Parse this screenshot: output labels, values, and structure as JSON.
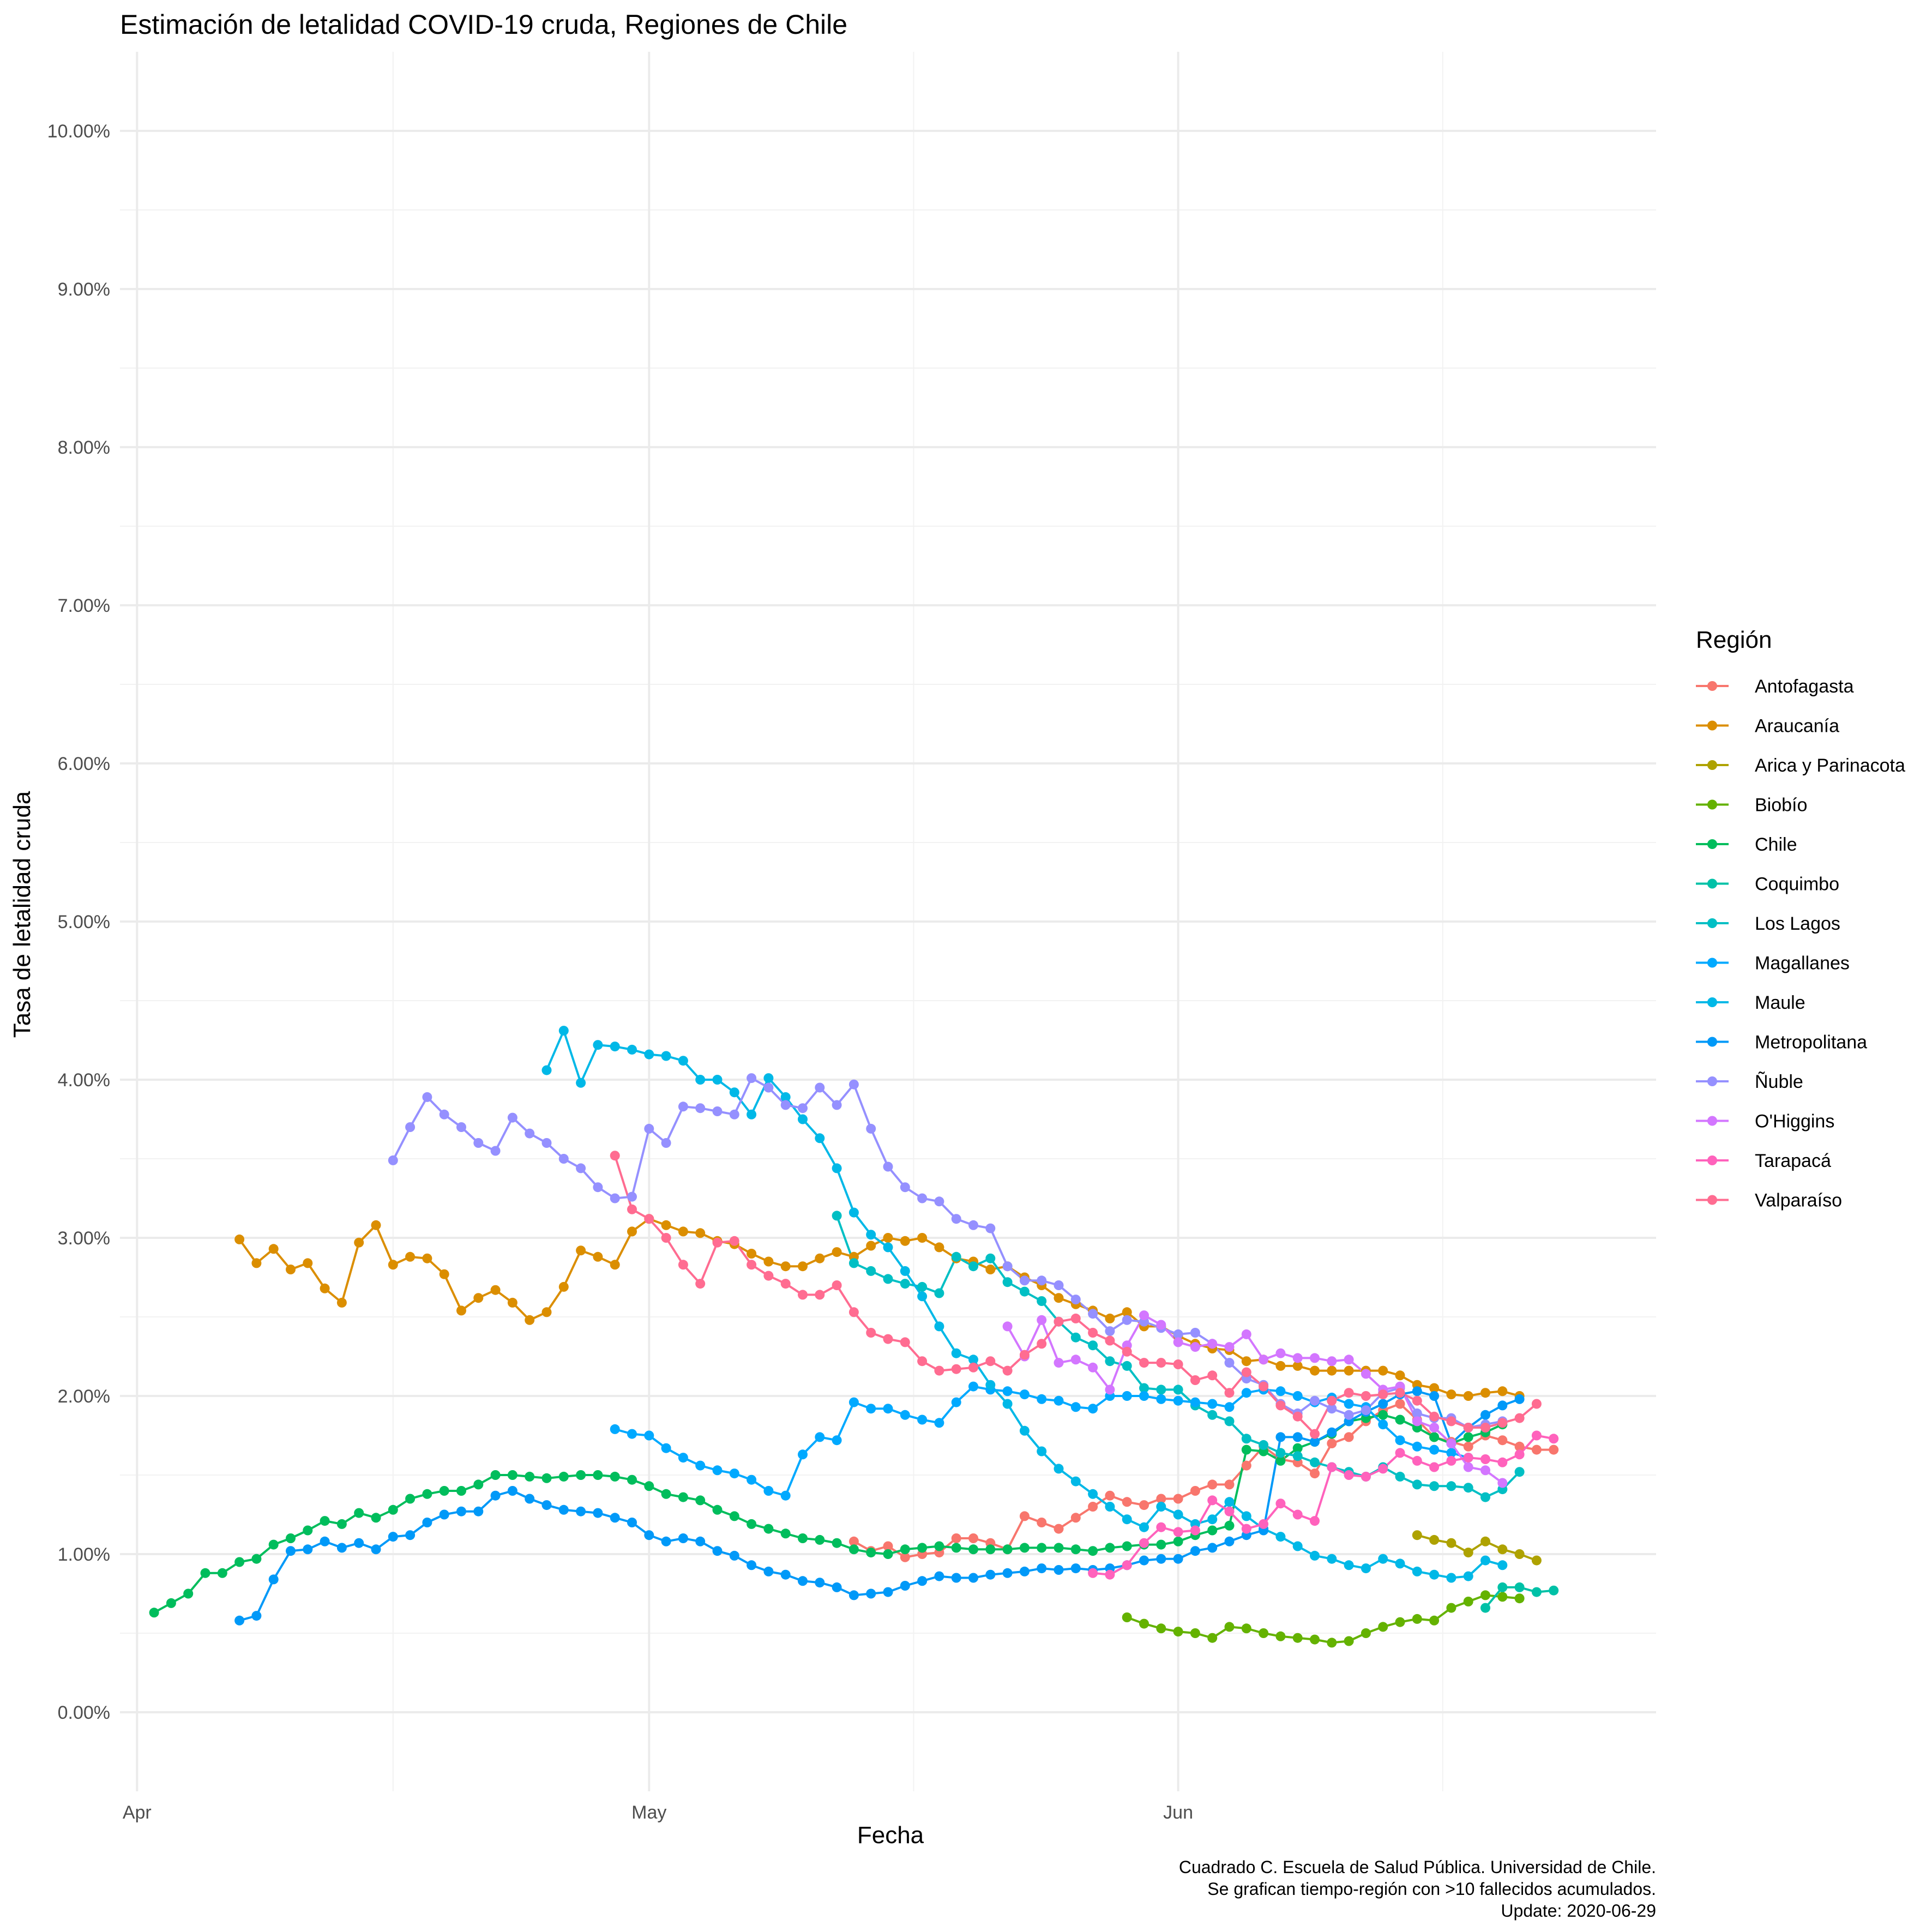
{
  "chart_data": {
    "type": "line",
    "title": "Estimación de letalidad COVID-19 cruda, Regiones de Chile",
    "xlabel": "Fecha",
    "ylabel": "Tasa de letalidad cruda",
    "x_type": "date",
    "xlim": [
      "2020-03-31",
      "2020-06-29"
    ],
    "ylim": [
      -0.5,
      10.5
    ],
    "y_ticks": [
      0,
      1,
      2,
      3,
      4,
      5,
      6,
      7,
      8,
      9,
      10
    ],
    "y_tick_labels": [
      "0.00%",
      "1.00%",
      "2.00%",
      "3.00%",
      "4.00%",
      "5.00%",
      "6.00%",
      "7.00%",
      "8.00%",
      "9.00%",
      "10.00%"
    ],
    "x_ticks": [
      "2020-04-01",
      "2020-05-01",
      "2020-06-01"
    ],
    "x_tick_labels": [
      "Apr",
      "May",
      "Jun"
    ],
    "grid": true,
    "legend": {
      "title": "Región",
      "position": "right"
    },
    "caption": [
      "Cuadrado C. Escuela de Salud Pública. Universidad de Chile.",
      "Se grafican tiempo-región con >10 fallecidos acumulados.",
      "Update: 2020-06-29"
    ],
    "series": [
      {
        "name": "Antofagasta",
        "color": "#F8766D",
        "start": "2020-05-13",
        "values": [
          1.08,
          1.02,
          1.05,
          0.98,
          1.0,
          1.01,
          1.1,
          1.1,
          1.07,
          1.03,
          1.24,
          1.2,
          1.16,
          1.23,
          1.3,
          1.37,
          1.33,
          1.31,
          1.35,
          1.35,
          1.4,
          1.44,
          1.44,
          1.56,
          1.68,
          1.6,
          1.58,
          1.51,
          1.7,
          1.74,
          1.84,
          1.91,
          1.95,
          1.85,
          1.74,
          1.71,
          1.68,
          1.75,
          1.72,
          1.68,
          1.66,
          1.66
        ]
      },
      {
        "name": "Araucanía",
        "color": "#DB8E00",
        "start": "2020-04-07",
        "values": [
          2.99,
          2.84,
          2.93,
          2.8,
          2.84,
          2.68,
          2.59,
          2.97,
          3.08,
          2.83,
          2.88,
          2.87,
          2.77,
          2.54,
          2.62,
          2.67,
          2.59,
          2.48,
          2.53,
          2.69,
          2.92,
          2.88,
          2.83,
          3.04,
          3.12,
          3.08,
          3.04,
          3.03,
          2.98,
          2.96,
          2.9,
          2.85,
          2.82,
          2.82,
          2.87,
          2.91,
          2.88,
          2.95,
          3.0,
          2.98,
          3.0,
          2.94,
          2.87,
          2.85,
          2.8,
          2.82,
          2.75,
          2.7,
          2.62,
          2.58,
          2.54,
          2.49,
          2.53,
          2.44,
          2.44,
          2.38,
          2.33,
          2.3,
          2.29,
          2.22,
          2.23,
          2.19,
          2.19,
          2.16,
          2.16,
          2.16,
          2.16,
          2.16,
          2.13,
          2.07,
          2.05,
          2.01,
          2.0,
          2.02,
          2.03,
          2.0
        ]
      },
      {
        "name": "Arica y Parinacota",
        "color": "#AEA200",
        "start": "2020-06-15",
        "values": [
          1.12,
          1.09,
          1.07,
          1.01,
          1.08,
          1.03,
          1.0,
          0.96
        ]
      },
      {
        "name": "Biobío",
        "color": "#64B200",
        "start": "2020-05-29",
        "values": [
          0.6,
          0.56,
          0.53,
          0.51,
          0.5,
          0.47,
          0.54,
          0.53,
          0.5,
          0.48,
          0.47,
          0.46,
          0.44,
          0.45,
          0.5,
          0.54,
          0.57,
          0.59,
          0.58,
          0.66,
          0.7,
          0.74,
          0.73,
          0.72
        ]
      },
      {
        "name": "Chile",
        "color": "#00BD5C",
        "start": "2020-04-02",
        "values": [
          0.63,
          0.69,
          0.75,
          0.88,
          0.88,
          0.95,
          0.97,
          1.06,
          1.1,
          1.15,
          1.21,
          1.19,
          1.26,
          1.23,
          1.28,
          1.35,
          1.38,
          1.4,
          1.4,
          1.44,
          1.5,
          1.5,
          1.49,
          1.48,
          1.49,
          1.5,
          1.5,
          1.49,
          1.47,
          1.43,
          1.38,
          1.36,
          1.34,
          1.28,
          1.24,
          1.19,
          1.16,
          1.13,
          1.1,
          1.09,
          1.07,
          1.03,
          1.01,
          1.0,
          1.03,
          1.04,
          1.05,
          1.04,
          1.03,
          1.03,
          1.03,
          1.04,
          1.04,
          1.04,
          1.03,
          1.02,
          1.04,
          1.05,
          1.06,
          1.06,
          1.08,
          1.12,
          1.15,
          1.18,
          1.66,
          1.65,
          1.59,
          1.67,
          1.71,
          1.76,
          1.84,
          1.86,
          1.88,
          1.85,
          1.8,
          1.74,
          1.7,
          1.74,
          1.77,
          1.82
        ]
      },
      {
        "name": "Coquimbo",
        "color": "#00C1A7",
        "start": "2020-06-19",
        "values": [
          0.66,
          0.79,
          0.79,
          0.76,
          0.77
        ]
      },
      {
        "name": "Los Lagos",
        "color": "#00BFC4",
        "start": "2020-05-12",
        "values": [
          3.14,
          2.84,
          2.79,
          2.74,
          2.71,
          2.69,
          2.65,
          2.88,
          2.82,
          2.87,
          2.72,
          2.66,
          2.6,
          2.47,
          2.37,
          2.32,
          2.22,
          2.19,
          2.05,
          2.04,
          2.04,
          1.94,
          1.88,
          1.84,
          1.73,
          1.69,
          1.64,
          1.62,
          1.58,
          1.55,
          1.52,
          1.49,
          1.55,
          1.49,
          1.44,
          1.43,
          1.43,
          1.42,
          1.36,
          1.41,
          1.52
        ]
      },
      {
        "name": "Magallanes",
        "color": "#00A9FF",
        "start": "2020-04-29",
        "values": [
          1.79,
          1.76,
          1.75,
          1.67,
          1.61,
          1.56,
          1.53,
          1.51,
          1.47,
          1.4,
          1.37,
          1.63,
          1.74,
          1.72,
          1.96,
          1.92,
          1.92,
          1.88,
          1.85,
          1.83,
          1.96,
          2.06,
          2.04,
          2.03,
          2.01,
          1.98,
          1.97,
          1.93,
          1.92,
          2.0,
          2.0,
          2.0,
          1.98,
          1.97,
          1.96,
          1.95,
          1.93,
          2.02,
          2.04,
          2.03,
          2.0,
          1.96,
          1.99,
          1.95,
          1.93,
          1.82,
          1.72,
          1.68,
          1.66,
          1.64,
          1.61
        ]
      },
      {
        "name": "Maule",
        "color": "#00B8E7",
        "start": "2020-04-25",
        "values": [
          4.06,
          4.31,
          3.98,
          4.22,
          4.21,
          4.19,
          4.16,
          4.15,
          4.12,
          4.0,
          4.0,
          3.92,
          3.78,
          4.01,
          3.89,
          3.75,
          3.63,
          3.44,
          3.16,
          3.02,
          2.94,
          2.79,
          2.63,
          2.44,
          2.27,
          2.23,
          2.07,
          1.95,
          1.78,
          1.65,
          1.54,
          1.46,
          1.38,
          1.3,
          1.22,
          1.17,
          1.3,
          1.25,
          1.19,
          1.22,
          1.33,
          1.24,
          1.16,
          1.11,
          1.05,
          0.99,
          0.97,
          0.93,
          0.91,
          0.97,
          0.94,
          0.89,
          0.87,
          0.85,
          0.86,
          0.96,
          0.93
        ]
      },
      {
        "name": "Metropolitana",
        "color": "#0099F8",
        "start": "2020-04-07",
        "values": [
          0.58,
          0.61,
          0.84,
          1.02,
          1.03,
          1.08,
          1.04,
          1.07,
          1.03,
          1.11,
          1.12,
          1.2,
          1.25,
          1.27,
          1.27,
          1.37,
          1.4,
          1.35,
          1.31,
          1.28,
          1.27,
          1.26,
          1.23,
          1.2,
          1.12,
          1.08,
          1.1,
          1.08,
          1.02,
          0.99,
          0.93,
          0.89,
          0.87,
          0.83,
          0.82,
          0.79,
          0.74,
          0.75,
          0.76,
          0.8,
          0.83,
          0.86,
          0.85,
          0.85,
          0.87,
          0.88,
          0.89,
          0.91,
          0.9,
          0.91,
          0.9,
          0.91,
          0.93,
          0.96,
          0.97,
          0.97,
          1.02,
          1.04,
          1.08,
          1.12,
          1.15,
          1.74,
          1.74,
          1.71,
          1.77,
          1.84,
          1.9,
          1.95,
          2.01,
          2.03,
          2.0,
          1.7,
          1.8,
          1.88,
          1.94,
          1.98
        ]
      },
      {
        "name": "Ñuble",
        "color": "#9590FF",
        "start": "2020-04-16",
        "values": [
          3.49,
          3.7,
          3.89,
          3.78,
          3.7,
          3.6,
          3.55,
          3.76,
          3.66,
          3.6,
          3.5,
          3.44,
          3.32,
          3.25,
          3.26,
          3.69,
          3.6,
          3.83,
          3.82,
          3.8,
          3.78,
          4.01,
          3.95,
          3.84,
          3.82,
          3.95,
          3.84,
          3.97,
          3.69,
          3.45,
          3.32,
          3.25,
          3.23,
          3.12,
          3.08,
          3.06,
          2.82,
          2.73,
          2.73,
          2.7,
          2.61,
          2.52,
          2.41,
          2.48,
          2.47,
          2.43,
          2.39,
          2.4,
          2.33,
          2.21,
          2.11,
          2.07,
          1.95,
          1.89,
          1.97,
          1.92,
          1.88,
          1.91,
          2.02,
          2.05,
          1.89,
          1.86,
          1.86,
          1.8,
          1.82,
          1.84
        ]
      },
      {
        "name": "O'Higgins",
        "color": "#D376FF",
        "start": "2020-05-22",
        "values": [
          2.44,
          2.25,
          2.48,
          2.21,
          2.23,
          2.18,
          2.04,
          2.32,
          2.51,
          2.45,
          2.34,
          2.31,
          2.33,
          2.31,
          2.39,
          2.23,
          2.27,
          2.24,
          2.24,
          2.22,
          2.23,
          2.14,
          2.04,
          2.06,
          1.84,
          1.8,
          1.7,
          1.55,
          1.53,
          1.45
        ]
      },
      {
        "name": "Tarapacá",
        "color": "#FF62BC",
        "start": "2020-05-27",
        "values": [
          0.88,
          0.87,
          0.93,
          1.07,
          1.17,
          1.14,
          1.15,
          1.34,
          1.27,
          1.16,
          1.19,
          1.32,
          1.25,
          1.21,
          1.55,
          1.5,
          1.49,
          1.54,
          1.64,
          1.59,
          1.55,
          1.59,
          1.61,
          1.6,
          1.58,
          1.63,
          1.75,
          1.73
        ]
      },
      {
        "name": "Valparaíso",
        "color": "#FF6C91",
        "start": "2020-04-29",
        "values": [
          3.52,
          3.18,
          3.12,
          3.0,
          2.83,
          2.71,
          2.97,
          2.98,
          2.83,
          2.76,
          2.71,
          2.64,
          2.64,
          2.7,
          2.53,
          2.4,
          2.36,
          2.34,
          2.22,
          2.16,
          2.17,
          2.18,
          2.22,
          2.16,
          2.26,
          2.33,
          2.47,
          2.49,
          2.4,
          2.35,
          2.28,
          2.21,
          2.21,
          2.2,
          2.1,
          2.13,
          2.02,
          2.15,
          2.06,
          1.94,
          1.87,
          1.76,
          1.97,
          2.02,
          2.0,
          2.01,
          2.02,
          1.97,
          1.87,
          1.84,
          1.8,
          1.8,
          1.83,
          1.86,
          1.95
        ]
      }
    ]
  }
}
